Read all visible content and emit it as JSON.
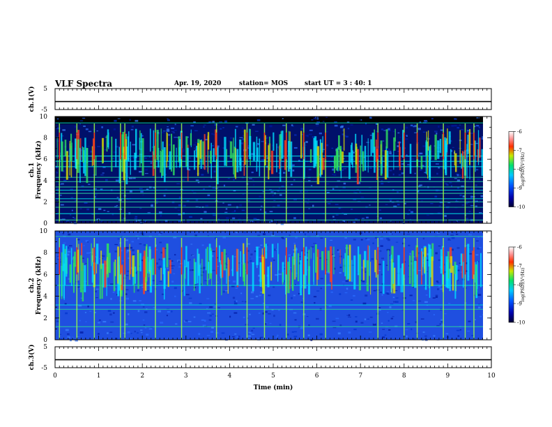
{
  "header": {
    "title": "VLF Spectra",
    "date": "Apr. 19, 2020",
    "station": "station= MOS",
    "start_ut": "start  UT =   3 : 40: 1"
  },
  "chart_data": [
    {
      "type": "line",
      "ylabel": "ch.1(V)",
      "xlim": [
        0,
        10
      ],
      "ylim": [
        -5,
        5
      ],
      "y_ticks": [
        "5",
        "-5"
      ],
      "series": [
        {
          "x": [
            0,
            10
          ],
          "values": [
            -1.2,
            -1.2
          ]
        }
      ]
    },
    {
      "type": "heatmap",
      "ylabel": "ch.1\nFrequency  (kHz)",
      "xlim": [
        0,
        10
      ],
      "ylim": [
        0,
        10
      ],
      "y_ticks": [
        "0",
        "2",
        "4",
        "6",
        "8",
        "10"
      ],
      "colorbar": {
        "label": "log(PSD)(V²/Hz)",
        "range": [
          -10,
          -6
        ],
        "ticks": [
          "-6",
          "-7",
          "-8",
          "-9",
          "-10"
        ]
      },
      "approx_spectral_lines_khz": [
        0.3,
        0.9,
        1.5,
        2.0,
        2.3,
        2.8,
        3.1,
        3.4,
        3.9,
        4.3,
        5.3,
        5.8,
        6.3,
        9.4
      ],
      "approx_bursts_min": [
        0.1,
        0.5,
        0.9,
        1.5,
        1.6,
        2.3,
        2.9,
        3.7,
        4.4,
        4.8,
        5.3,
        5.7,
        6.2,
        7.4,
        8.0,
        8.3,
        8.9,
        9.4,
        9.6
      ]
    },
    {
      "type": "heatmap",
      "ylabel": "ch.2\nFrequency  (kHz)",
      "xlim": [
        0,
        10
      ],
      "ylim": [
        0,
        10
      ],
      "y_ticks": [
        "0",
        "2",
        "4",
        "6",
        "8",
        "10"
      ],
      "colorbar": {
        "label": "log(PSD)(V²/Hz)",
        "range": [
          -10,
          -6
        ],
        "ticks": [
          "-6",
          "-7",
          "-8",
          "-9",
          "-10"
        ]
      },
      "approx_spectral_lines_khz": [
        1.2,
        2.8,
        3.2,
        5.0,
        9.5
      ],
      "approx_bursts_min": [
        0.1,
        0.5,
        0.9,
        1.5,
        1.6,
        2.3,
        2.9,
        3.7,
        4.4,
        4.8,
        5.3,
        5.7,
        6.2,
        7.4,
        8.0,
        8.3,
        8.9,
        9.4,
        9.6
      ]
    },
    {
      "type": "line",
      "ylabel": "ch.3(V)",
      "xlabel": "Time  (min)",
      "xlim": [
        0,
        10
      ],
      "ylim": [
        -5,
        5
      ],
      "x_ticks": [
        "0",
        "1",
        "2",
        "3",
        "4",
        "5",
        "6",
        "7",
        "8",
        "9",
        "10"
      ],
      "y_ticks": [
        "5",
        "-5"
      ],
      "series": [
        {
          "x": [
            0,
            10
          ],
          "values": [
            -1.2,
            -1.2
          ]
        }
      ]
    }
  ]
}
